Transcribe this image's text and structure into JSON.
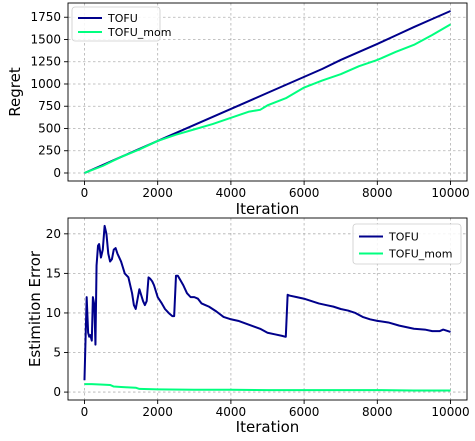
{
  "chart_data": [
    {
      "type": "line",
      "title": "",
      "xlabel": "Iteration",
      "ylabel": "Regret",
      "xlim": [
        -450,
        10450
      ],
      "ylim": [
        -90,
        1910
      ],
      "xticks": [
        0,
        2000,
        4000,
        6000,
        8000,
        10000
      ],
      "yticks": [
        0,
        250,
        500,
        750,
        1000,
        1250,
        1500,
        1750
      ],
      "grid": true,
      "legend_position": "top-left",
      "series": [
        {
          "name": "TOFU",
          "color": "#00008b",
          "x": [
            0,
            500,
            1000,
            1500,
            2000,
            2500,
            3000,
            3500,
            4000,
            4500,
            5000,
            5500,
            6000,
            6500,
            7000,
            7500,
            8000,
            8500,
            9000,
            9500,
            10000
          ],
          "y": [
            0,
            90,
            180,
            270,
            360,
            450,
            540,
            630,
            720,
            810,
            900,
            990,
            1080,
            1170,
            1270,
            1360,
            1450,
            1545,
            1640,
            1730,
            1820
          ]
        },
        {
          "name": "TOFU_mom",
          "color": "#00ff7f",
          "x": [
            0,
            500,
            800,
            1000,
            1500,
            2000,
            2500,
            3000,
            3500,
            4000,
            4500,
            4800,
            5000,
            5500,
            6000,
            6500,
            7000,
            7500,
            8000,
            8500,
            9000,
            9500,
            10000
          ],
          "y": [
            0,
            80,
            140,
            180,
            265,
            360,
            430,
            490,
            550,
            620,
            690,
            710,
            760,
            840,
            960,
            1040,
            1110,
            1200,
            1270,
            1360,
            1440,
            1550,
            1670
          ]
        }
      ]
    },
    {
      "type": "line",
      "title": "",
      "xlabel": "Iteration",
      "ylabel": "Estimition Error",
      "xlim": [
        -450,
        10450
      ],
      "ylim": [
        -1,
        22
      ],
      "xticks": [
        0,
        2000,
        4000,
        6000,
        8000,
        10000
      ],
      "yticks": [
        0,
        5,
        10,
        15,
        20
      ],
      "grid": true,
      "legend_position": "top-right",
      "series": [
        {
          "name": "TOFU",
          "color": "#00008b",
          "x": [
            0,
            60,
            100,
            130,
            160,
            200,
            230,
            270,
            300,
            330,
            370,
            400,
            450,
            500,
            550,
            600,
            650,
            700,
            750,
            800,
            850,
            900,
            950,
            1000,
            1100,
            1200,
            1300,
            1350,
            1400,
            1500,
            1600,
            1650,
            1700,
            1750,
            1800,
            1850,
            1900,
            2000,
            2100,
            2200,
            2300,
            2400,
            2450,
            2500,
            2550,
            2600,
            2700,
            2800,
            2900,
            3000,
            3100,
            3200,
            3300,
            3400,
            3500,
            3600,
            3800,
            4000,
            4200,
            4500,
            4800,
            5000,
            5200,
            5400,
            5480,
            5500,
            5550,
            5600,
            5800,
            6000,
            6200,
            6400,
            6600,
            6800,
            7000,
            7200,
            7400,
            7600,
            7800,
            8000,
            8300,
            8600,
            9000,
            9300,
            9500,
            9700,
            9800,
            10000
          ],
          "y": [
            1.5,
            12,
            7.5,
            7,
            7.2,
            6.5,
            12,
            11,
            6,
            16,
            18.5,
            18.7,
            17,
            18,
            21,
            20,
            17.5,
            16.5,
            16.8,
            18,
            18.2,
            17.5,
            17,
            16.5,
            15,
            14.5,
            12.5,
            11,
            10.5,
            13,
            11.5,
            11,
            11.5,
            14.5,
            14.3,
            14,
            13.5,
            12,
            11.3,
            10.5,
            10,
            9.6,
            9.6,
            14.7,
            14.7,
            14.3,
            13.5,
            12.5,
            12,
            12,
            11.8,
            11.2,
            11,
            10.8,
            10.5,
            10.2,
            9.5,
            9.2,
            9.0,
            8.5,
            8.0,
            7.5,
            7.3,
            7.1,
            7.0,
            7.0,
            12.3,
            12.2,
            12.0,
            11.8,
            11.5,
            11.2,
            11.0,
            10.8,
            10.5,
            10.3,
            10.0,
            9.5,
            9.2,
            9.0,
            8.8,
            8.4,
            8.0,
            7.9,
            7.7,
            7.7,
            7.9,
            7.6
          ]
        },
        {
          "name": "TOFU_mom",
          "color": "#00ff7f",
          "x": [
            0,
            200,
            500,
            700,
            800,
            1000,
            1200,
            1400,
            1500,
            2000,
            3000,
            4000,
            5000,
            6000,
            7000,
            8000,
            9000,
            10000
          ],
          "y": [
            1.0,
            1.0,
            0.95,
            0.9,
            0.7,
            0.65,
            0.6,
            0.55,
            0.4,
            0.35,
            0.3,
            0.3,
            0.25,
            0.25,
            0.25,
            0.25,
            0.2,
            0.2
          ]
        }
      ]
    }
  ]
}
